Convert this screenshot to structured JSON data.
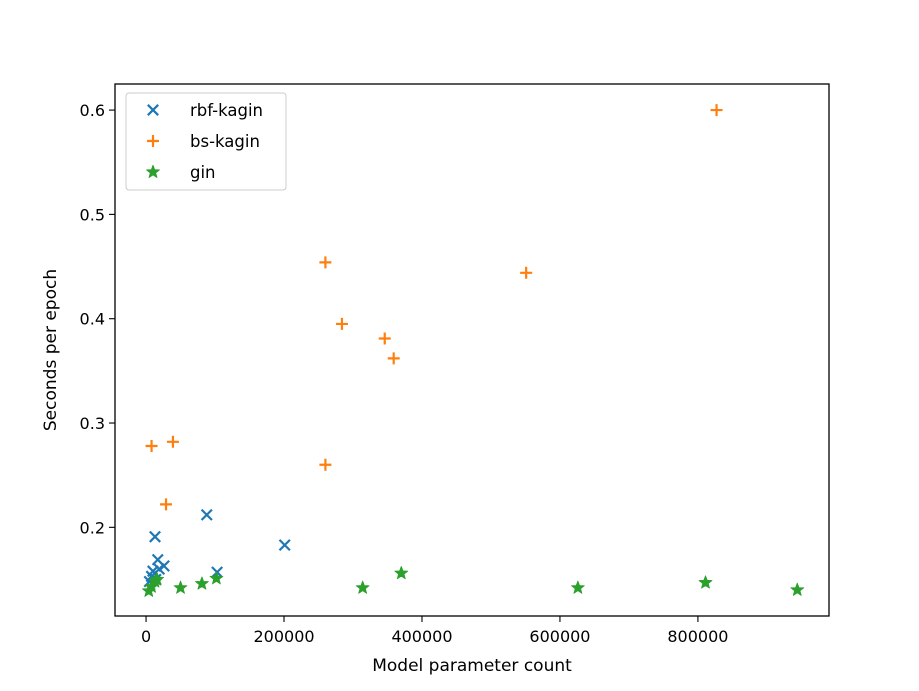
{
  "chart_data": {
    "type": "scatter",
    "title": "",
    "xlabel": "Model parameter count",
    "ylabel": "Seconds per epoch",
    "xlim": [
      -45000,
      990000
    ],
    "ylim": [
      0.115,
      0.625
    ],
    "xticks": [
      0,
      200000,
      400000,
      600000,
      800000
    ],
    "xtick_labels": [
      "0",
      "200000",
      "400000",
      "600000",
      "800000"
    ],
    "yticks": [
      0.2,
      0.3,
      0.4,
      0.5,
      0.6
    ],
    "ytick_labels": [
      "0.2",
      "0.3",
      "0.4",
      "0.5",
      "0.6"
    ],
    "grid": false,
    "legend_position": "top-left",
    "series": [
      {
        "name": "rbf-kagin",
        "marker": "x",
        "color": "#1f77b4",
        "points": [
          [
            5000,
            0.148
          ],
          [
            8000,
            0.153
          ],
          [
            10000,
            0.158
          ],
          [
            13000,
            0.191
          ],
          [
            14000,
            0.15
          ],
          [
            17000,
            0.169
          ],
          [
            19000,
            0.16
          ],
          [
            26000,
            0.163
          ],
          [
            88000,
            0.212
          ],
          [
            103000,
            0.157
          ],
          [
            201000,
            0.183
          ]
        ]
      },
      {
        "name": "bs-kagin",
        "marker": "plus",
        "color": "#ff7f0e",
        "points": [
          [
            8000,
            0.278
          ],
          [
            29000,
            0.222
          ],
          [
            39000,
            0.282
          ],
          [
            260000,
            0.454
          ],
          [
            260000,
            0.26
          ],
          [
            284000,
            0.395
          ],
          [
            346000,
            0.381
          ],
          [
            359000,
            0.362
          ],
          [
            551000,
            0.444
          ],
          [
            827000,
            0.6
          ]
        ]
      },
      {
        "name": "gin",
        "marker": "star",
        "color": "#2ca02c",
        "points": [
          [
            4000,
            0.139
          ],
          [
            8000,
            0.143
          ],
          [
            13000,
            0.148
          ],
          [
            16000,
            0.15
          ],
          [
            50000,
            0.142
          ],
          [
            81000,
            0.146
          ],
          [
            102000,
            0.151
          ],
          [
            314000,
            0.142
          ],
          [
            370000,
            0.156
          ],
          [
            626000,
            0.142
          ],
          [
            811000,
            0.147
          ],
          [
            944000,
            0.14
          ]
        ]
      }
    ]
  }
}
